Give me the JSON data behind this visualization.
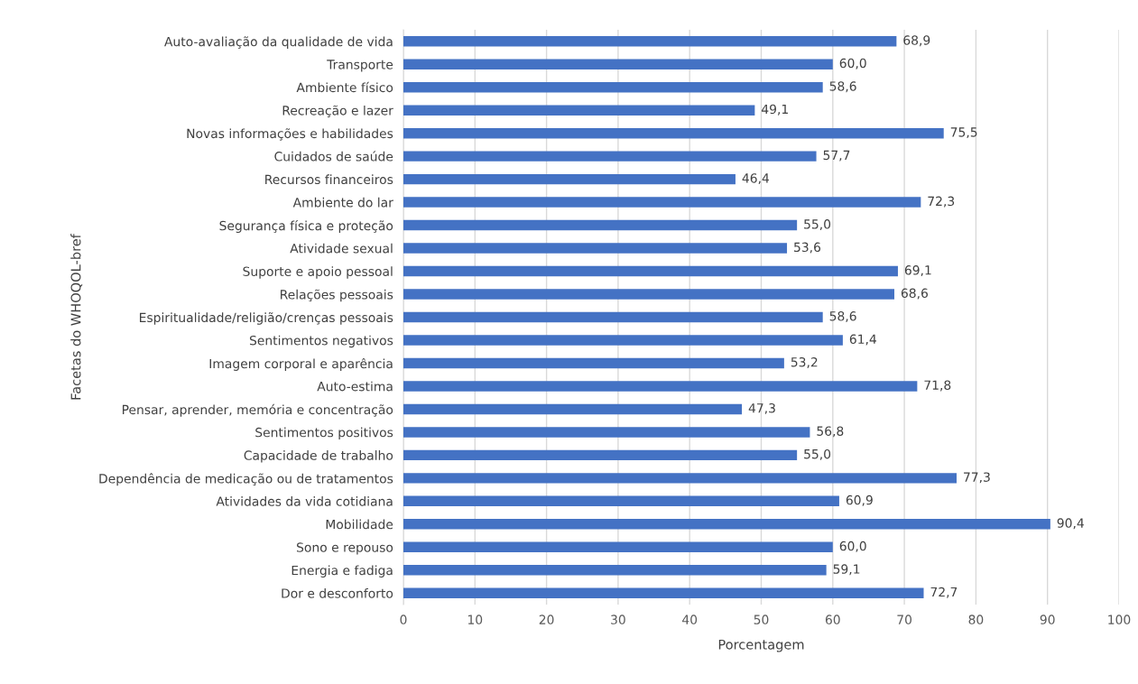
{
  "chart_data": {
    "type": "bar",
    "orientation": "horizontal",
    "xlabel": "Porcentagem",
    "ylabel": "Facetas do WHOQOL-bref",
    "categories": [
      "Auto-avaliação da qualidade de vida",
      "Transporte",
      "Ambiente físico",
      "Recreação e lazer",
      "Novas informações e habilidades",
      "Cuidados de saúde",
      "Recursos financeiros",
      "Ambiente do lar",
      "Segurança física e proteção",
      "Atividade sexual",
      "Suporte e apoio pessoal",
      "Relações pessoais",
      "Espiritualidade/religião/crenças pessoais",
      "Sentimentos negativos",
      "Imagem corporal e aparência",
      "Auto-estima",
      "Pensar, aprender, memória e concentração",
      "Sentimentos positivos",
      "Capacidade de trabalho",
      "Dependência de medicação ou de tratamentos",
      "Atividades da vida cotidiana",
      "Mobilidade",
      "Sono e repouso",
      "Energia e fadiga",
      "Dor e desconforto"
    ],
    "values": [
      68.9,
      60.0,
      58.6,
      49.1,
      75.5,
      57.7,
      46.4,
      72.3,
      55.0,
      53.6,
      69.1,
      68.6,
      58.6,
      61.4,
      53.2,
      71.8,
      47.3,
      56.8,
      55.0,
      77.3,
      60.9,
      90.4,
      60.0,
      59.1,
      72.7
    ],
    "value_labels": [
      "68,9",
      "60,0",
      "58,6",
      "49,1",
      "75,5",
      "57,7",
      "46,4",
      "72,3",
      "55,0",
      "53,6",
      "69,1",
      "68,6",
      "58,6",
      "61,4",
      "53,2",
      "71,8",
      "47,3",
      "56,8",
      "55,0",
      "77,3",
      "60,9",
      "90,4",
      "60,0",
      "59,1",
      "72,7"
    ],
    "color": "#4472c4",
    "xlim": [
      0,
      100
    ],
    "xticks": [
      0,
      10,
      20,
      30,
      40,
      50,
      60,
      70,
      80,
      90,
      100
    ],
    "grid": "x"
  }
}
